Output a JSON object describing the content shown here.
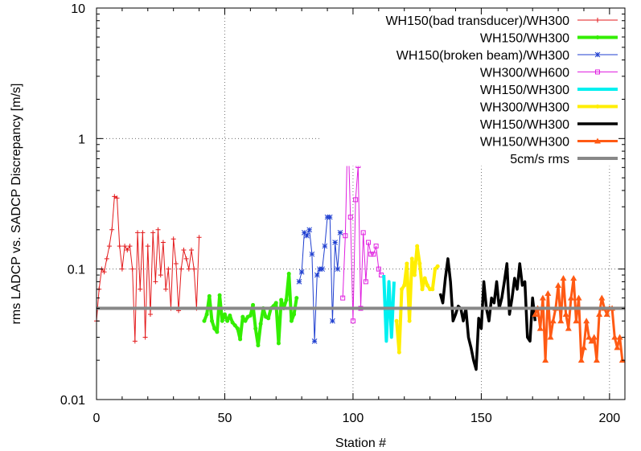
{
  "chart_data": {
    "type": "line",
    "title": "",
    "xlabel": "Station #",
    "ylabel": "rms LADCP vs. SADCP Discrepancy [m/s]",
    "xlim": [
      0,
      206
    ],
    "ylim": [
      0.01,
      10
    ],
    "yscale": "log",
    "grid": true,
    "legend_position": "top-right",
    "xticks": [
      0,
      50,
      100,
      150,
      200
    ],
    "xtick_labels": [
      "0",
      "50",
      "100",
      "150",
      "200"
    ],
    "yticks": [
      0.01,
      0.1,
      1,
      10
    ],
    "ytick_labels": [
      "0.01",
      "0.1",
      "1",
      "10"
    ],
    "series": [
      {
        "name": "WH150(bad transducer)/WH300",
        "color": "#e31a1c",
        "width": 1,
        "marker": "plus",
        "x": [
          0,
          1,
          2,
          3,
          4,
          5,
          6,
          7,
          8,
          9,
          10,
          11,
          12,
          13,
          14,
          15,
          16,
          17,
          18,
          19,
          20,
          21,
          22,
          23,
          24,
          25,
          26,
          27,
          28,
          29,
          30,
          31,
          32,
          33,
          34,
          35,
          36,
          37,
          38,
          39,
          40
        ],
        "y": [
          0.04,
          0.07,
          0.1,
          0.095,
          0.12,
          0.15,
          0.2,
          0.36,
          0.35,
          0.15,
          0.1,
          0.15,
          0.14,
          0.15,
          0.1,
          0.028,
          0.19,
          0.07,
          0.19,
          0.03,
          0.15,
          0.045,
          0.19,
          0.08,
          0.2,
          0.09,
          0.16,
          0.07,
          0.1,
          0.05,
          0.17,
          0.11,
          0.048,
          0.1,
          0.14,
          0.12,
          0.1,
          0.14,
          0.1,
          0.05,
          0.175
        ]
      },
      {
        "name": "WH150/WH300",
        "color": "#33ee00",
        "width": 4,
        "marker": "dot",
        "x": [
          42,
          43,
          44,
          45,
          46,
          47,
          48,
          49,
          50,
          51,
          52,
          53,
          54,
          55,
          56,
          57,
          58,
          59,
          60,
          61,
          62,
          63,
          64,
          65,
          66,
          67,
          68,
          69,
          70,
          71,
          72,
          73,
          74,
          75,
          76,
          77,
          78
        ],
        "y": [
          0.04,
          0.045,
          0.062,
          0.04,
          0.035,
          0.033,
          0.063,
          0.04,
          0.045,
          0.04,
          0.044,
          0.039,
          0.037,
          0.035,
          0.029,
          0.043,
          0.04,
          0.043,
          0.044,
          0.053,
          0.035,
          0.026,
          0.038,
          0.05,
          0.043,
          0.042,
          0.05,
          0.052,
          0.055,
          0.027,
          0.058,
          0.05,
          0.058,
          0.092,
          0.04,
          0.045,
          0.06
        ]
      },
      {
        "name": "WH150(broken beam)/WH300",
        "color": "#1f3fd0",
        "width": 1,
        "marker": "star",
        "x": [
          79,
          80,
          81,
          82,
          83,
          84,
          85,
          86,
          87,
          88,
          89,
          90,
          91,
          92,
          93,
          94,
          95
        ],
        "y": [
          0.08,
          0.095,
          0.19,
          0.18,
          0.2,
          0.13,
          0.028,
          0.09,
          0.1,
          0.1,
          0.15,
          0.25,
          0.25,
          0.04,
          0.16,
          0.1,
          0.19
        ]
      },
      {
        "name": "WH300/WH600",
        "color": "#e020e0",
        "width": 1,
        "marker": "square",
        "x": [
          96,
          97,
          98,
          99,
          100,
          101,
          102,
          103,
          104,
          105,
          106,
          107,
          108,
          109,
          110,
          111
        ],
        "y": [
          0.06,
          0.18,
          1.3,
          0.25,
          0.04,
          0.34,
          0.62,
          0.05,
          0.19,
          0.08,
          0.16,
          0.13,
          0.13,
          0.15,
          0.1,
          0.09
        ]
      },
      {
        "name": "WH150/WH300",
        "color": "#00f0f0",
        "width": 4,
        "marker": "none",
        "x": [
          112,
          113,
          114,
          115,
          116
        ],
        "y": [
          0.09,
          0.028,
          0.08,
          0.03,
          0.08
        ]
      },
      {
        "name": "WH300/WH300",
        "color": "#ffee00",
        "width": 4,
        "marker": "dot",
        "x": [
          117,
          118,
          119,
          120,
          121,
          122,
          123,
          124,
          125,
          126,
          127,
          128,
          129,
          130,
          131,
          132,
          133
        ],
        "y": [
          0.04,
          0.023,
          0.07,
          0.075,
          0.11,
          0.04,
          0.12,
          0.09,
          0.15,
          0.11,
          0.07,
          0.085,
          0.075,
          0.07,
          0.07,
          0.1,
          0.105
        ]
      },
      {
        "name": "WH150/WH300",
        "color": "#000000",
        "width": 3.5,
        "marker": "none",
        "x": [
          134,
          135,
          136,
          137,
          138,
          139,
          140,
          141,
          142,
          143,
          144,
          145,
          146,
          147,
          148,
          149,
          150,
          151,
          152,
          153,
          154,
          155,
          156,
          157,
          158,
          159,
          160,
          161,
          162,
          163,
          164,
          165,
          166,
          167,
          168,
          169,
          170,
          171
        ],
        "y": [
          0.065,
          0.055,
          0.085,
          0.12,
          0.08,
          0.04,
          0.045,
          0.052,
          0.05,
          0.04,
          0.05,
          0.03,
          0.025,
          0.02,
          0.017,
          0.042,
          0.035,
          0.08,
          0.05,
          0.04,
          0.06,
          0.055,
          0.08,
          0.05,
          0.06,
          0.08,
          0.11,
          0.045,
          0.06,
          0.085,
          0.07,
          0.11,
          0.075,
          0.08,
          0.03,
          0.028,
          0.06,
          0.04
        ]
      },
      {
        "name": "WH150/WH300",
        "color": "#ff5a14",
        "width": 3,
        "marker": "triangle",
        "x": [
          171,
          172,
          173,
          174,
          175,
          176,
          177,
          178,
          179,
          180,
          181,
          182,
          183,
          184,
          185,
          186,
          187,
          188,
          189,
          190,
          191,
          192,
          193,
          194,
          195,
          196,
          197,
          198,
          199,
          200,
          201,
          202,
          203,
          204,
          205
        ],
        "y": [
          0.045,
          0.05,
          0.035,
          0.06,
          0.02,
          0.065,
          0.03,
          0.04,
          0.05,
          0.075,
          0.04,
          0.085,
          0.045,
          0.035,
          0.06,
          0.085,
          0.04,
          0.06,
          0.02,
          0.025,
          0.04,
          0.03,
          0.028,
          0.03,
          0.02,
          0.045,
          0.06,
          0.05,
          0.045,
          0.05,
          0.05,
          0.03,
          0.025,
          0.03,
          0.02
        ]
      },
      {
        "name": "5cm/s rms",
        "color": "#888888",
        "width": 4,
        "marker": "none",
        "x": [
          0,
          206
        ],
        "y": [
          0.05,
          0.05
        ]
      }
    ]
  }
}
